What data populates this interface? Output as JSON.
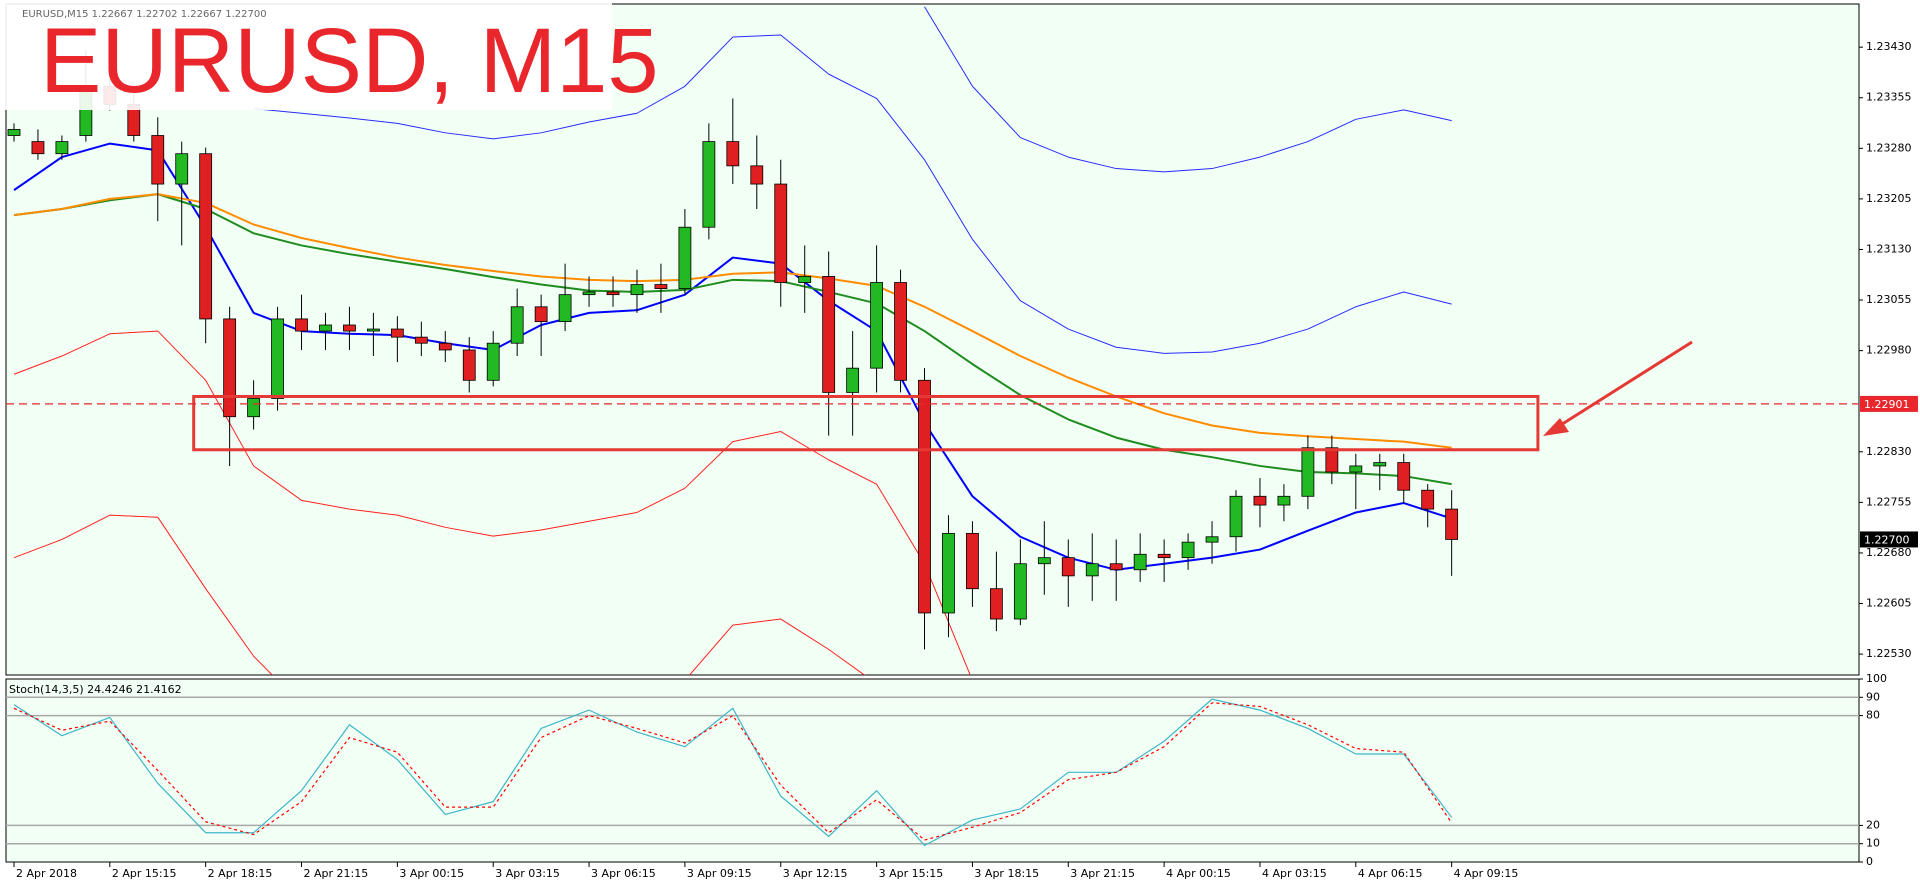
{
  "chart_data": [
    {
      "type": "candlestick",
      "title": "EURUSD, M15",
      "info": "EURUSD,M15  1.22667 1.22702 1.22667 1.22700",
      "up_color": "#22b922",
      "down_color": "#e02020",
      "x": [
        0,
        3,
        6,
        9,
        12,
        15,
        18,
        21,
        24,
        27,
        30,
        33,
        36,
        39,
        42,
        45,
        48,
        51,
        54,
        57,
        60,
        63,
        66,
        69,
        72,
        75,
        78,
        81,
        84,
        87,
        90,
        93,
        96,
        99,
        102,
        105,
        108,
        111,
        114,
        117,
        120,
        123,
        126,
        129,
        132,
        135,
        138,
        141,
        144,
        147,
        150,
        153,
        156,
        159,
        162,
        165,
        168,
        171,
        174,
        177,
        180
      ],
      "open": [
        1.23299,
        1.2329,
        1.23272,
        1.23299,
        1.23372,
        1.23345,
        1.23299,
        1.23227,
        1.23272,
        1.23027,
        1.22882,
        1.22909,
        1.23027,
        1.23009,
        1.23018,
        1.23009,
        1.23012,
        1.23,
        1.22991,
        1.22981,
        1.22936,
        1.22991,
        1.23045,
        1.23023,
        1.23063,
        1.23067,
        1.23063,
        1.23078,
        1.23072,
        1.23163,
        1.2329,
        1.23254,
        1.23227,
        1.23081,
        1.2309,
        1.22918,
        1.22954,
        1.23081,
        1.22936,
        1.22591,
        1.22709,
        1.22627,
        1.22582,
        1.22664,
        1.22673,
        1.22646,
        1.22664,
        1.22655,
        1.22678,
        1.22673,
        1.22696,
        1.22704,
        1.22764,
        1.22751,
        1.22764,
        1.22836,
        1.228,
        1.22809,
        1.22814,
        1.22773,
        1.22745
      ],
      "high": [
        1.23317,
        1.23308,
        1.23299,
        1.23426,
        1.23408,
        1.23363,
        1.23326,
        1.2329,
        1.23281,
        1.23045,
        1.22936,
        1.23045,
        1.23063,
        1.23036,
        1.23045,
        1.23036,
        1.23031,
        1.23023,
        1.23009,
        1.23,
        1.23009,
        1.23072,
        1.23063,
        1.23109,
        1.2309,
        1.2309,
        1.231,
        1.23109,
        1.2319,
        1.23317,
        1.23354,
        1.23299,
        1.23263,
        1.23136,
        1.23127,
        1.23009,
        1.23136,
        1.231,
        1.22954,
        1.22736,
        1.22727,
        1.22682,
        1.227,
        1.22727,
        1.227,
        1.22709,
        1.227,
        1.22709,
        1.227,
        1.22709,
        1.22727,
        1.22773,
        1.22791,
        1.22782,
        1.22854,
        1.22854,
        1.22827,
        1.22827,
        1.22827,
        1.22782,
        1.22773
      ],
      "low": [
        1.2329,
        1.23263,
        1.23263,
        1.2329,
        1.23336,
        1.2329,
        1.23172,
        1.23136,
        1.22991,
        1.22809,
        1.22863,
        1.22891,
        1.22981,
        1.22981,
        1.22981,
        1.22972,
        1.22963,
        1.22972,
        1.22963,
        1.22918,
        1.22927,
        1.22972,
        1.22972,
        1.23009,
        1.23045,
        1.23045,
        1.23036,
        1.23036,
        1.23063,
        1.23145,
        1.23227,
        1.2319,
        1.23045,
        1.23036,
        1.22854,
        1.22854,
        1.22918,
        1.22918,
        1.22537,
        1.22555,
        1.226,
        1.22564,
        1.22573,
        1.22618,
        1.226,
        1.22609,
        1.22609,
        1.22637,
        1.22637,
        1.22655,
        1.22664,
        1.22682,
        1.22718,
        1.22727,
        1.22745,
        1.22782,
        1.22745,
        1.22773,
        1.22754,
        1.22718,
        1.22646
      ],
      "close": [
        1.23308,
        1.23272,
        1.2329,
        1.23372,
        1.23345,
        1.23299,
        1.23227,
        1.23272,
        1.23027,
        1.22882,
        1.22909,
        1.23027,
        1.23009,
        1.23018,
        1.23009,
        1.23012,
        1.23,
        1.22991,
        1.22981,
        1.22936,
        1.22991,
        1.23045,
        1.23023,
        1.23063,
        1.23067,
        1.23063,
        1.23078,
        1.23072,
        1.23163,
        1.2329,
        1.23254,
        1.23227,
        1.23081,
        1.2309,
        1.22918,
        1.22954,
        1.23081,
        1.22936,
        1.22591,
        1.22709,
        1.22627,
        1.22582,
        1.22664,
        1.22673,
        1.22646,
        1.22664,
        1.22655,
        1.22678,
        1.22673,
        1.22696,
        1.22704,
        1.22764,
        1.22751,
        1.22764,
        1.22836,
        1.228,
        1.22809,
        1.22814,
        1.22773,
        1.22745,
        1.227
      ],
      "line_x": [
        0,
        6,
        12,
        18,
        24,
        30,
        36,
        42,
        48,
        54,
        60,
        66,
        72,
        78,
        84,
        90,
        96,
        102,
        108,
        114,
        120,
        126,
        132,
        138,
        144,
        150,
        156,
        162,
        168,
        174,
        180
      ],
      "lines": [
        {
          "color": "#0000ff",
          "width": 2,
          "values": [
            1.23218,
            1.23267,
            1.23287,
            1.23277,
            1.23163,
            1.23036,
            1.23009,
            1.23005,
            1.23003,
            1.22991,
            1.22981,
            1.23018,
            1.23036,
            1.2304,
            1.23063,
            1.23118,
            1.23109,
            1.23054,
            1.23009,
            1.22873,
            1.22764,
            1.22704,
            1.22673,
            1.22655,
            1.22664,
            1.22673,
            1.22685,
            1.22713,
            1.2274,
            1.22754,
            1.22731
          ]
        },
        {
          "color": "#1e8c1e",
          "width": 2,
          "values": [
            1.23181,
            1.2319,
            1.23203,
            1.23212,
            1.2319,
            1.23154,
            1.23136,
            1.23123,
            1.23112,
            1.23101,
            1.23089,
            1.23078,
            1.23069,
            1.23067,
            1.2307,
            1.23085,
            1.23083,
            1.23067,
            1.2305,
            1.23009,
            1.2296,
            1.22914,
            1.22878,
            1.22851,
            1.22833,
            1.22822,
            1.22809,
            1.228,
            1.22798,
            1.22794,
            1.22782
          ]
        },
        {
          "color": "#ff8c00",
          "width": 2,
          "values": [
            1.23181,
            1.2319,
            1.23205,
            1.23212,
            1.23199,
            1.23167,
            1.23147,
            1.23132,
            1.23118,
            1.23107,
            1.23098,
            1.2309,
            1.23085,
            1.23083,
            1.23085,
            1.23094,
            1.23096,
            1.23087,
            1.23076,
            1.23045,
            1.23009,
            1.22972,
            1.2294,
            1.22912,
            1.22887,
            1.22869,
            1.22858,
            1.22853,
            1.22849,
            1.22845,
            1.22836
          ]
        },
        {
          "color": "#2a2aff",
          "width": 1,
          "values": [
            null,
            null,
            null,
            null,
            null,
            1.23339,
            1.23332,
            1.23325,
            1.23317,
            1.23303,
            1.23294,
            1.23303,
            1.23319,
            1.23332,
            1.23372,
            1.23445,
            1.23448,
            1.2339,
            1.23354,
            1.23263,
            1.23145,
            1.23054,
            1.23012,
            1.22985,
            1.22976,
            1.22978,
            1.22991,
            1.23012,
            1.23045,
            1.23067,
            1.23049
          ]
        },
        {
          "color": "#2a2aff",
          "width": 1,
          "values": [
            null,
            null,
            null,
            null,
            null,
            null,
            null,
            null,
            null,
            null,
            null,
            null,
            null,
            null,
            null,
            null,
            null,
            null,
            null,
            1.2349,
            1.23372,
            1.23296,
            1.23267,
            1.2325,
            1.23245,
            1.2325,
            1.23267,
            1.2329,
            1.23323,
            1.23337,
            1.23321
          ]
        },
        {
          "color": "#ff2020",
          "width": 1,
          "values": [
            1.22945,
            1.22972,
            1.23005,
            1.23009,
            1.22936,
            1.22809,
            1.22758,
            1.22745,
            1.22736,
            1.22718,
            1.22705,
            1.22714,
            1.22727,
            1.2274,
            1.22776,
            1.22845,
            1.2286,
            1.22818,
            1.22782,
            1.22664,
            1.22491,
            null,
            null,
            null,
            null,
            null,
            null,
            null,
            null,
            null,
            null
          ]
        },
        {
          "color": "#ff2020",
          "width": 1,
          "values": [
            1.22673,
            1.227,
            1.22736,
            1.22733,
            1.22627,
            1.22527,
            1.22455,
            null,
            null,
            null,
            null,
            null,
            null,
            null,
            1.22491,
            1.22573,
            1.22582,
            1.22537,
            1.22486,
            null,
            null,
            null,
            null,
            null,
            null,
            null,
            null,
            null,
            null,
            null,
            null
          ]
        }
      ],
      "price_lines": [
        {
          "value": 1.22901,
          "label": "1.22901",
          "color": "#e8262b",
          "show_line": true
        },
        {
          "value": 1.227,
          "label": "1.22700",
          "color": "#000000",
          "show_line": false
        }
      ],
      "zone": {
        "x": [
          22.5,
          190.8
        ],
        "y": [
          1.22833,
          1.22912
        ],
        "color": "#e53935"
      },
      "xlim": [
        -1,
        231
      ],
      "xticks": [
        {
          "value": 0,
          "label": "2 Apr 2018"
        },
        {
          "value": 12,
          "label": "2 Apr 15:15"
        },
        {
          "value": 24,
          "label": "2 Apr 18:15"
        },
        {
          "value": 36,
          "label": "2 Apr 21:15"
        },
        {
          "value": 48,
          "label": "3 Apr 00:15"
        },
        {
          "value": 60,
          "label": "3 Apr 03:15"
        },
        {
          "value": 72,
          "label": "3 Apr 06:15"
        },
        {
          "value": 84,
          "label": "3 Apr 09:15"
        },
        {
          "value": 96,
          "label": "3 Apr 12:15"
        },
        {
          "value": 108,
          "label": "3 Apr 15:15"
        },
        {
          "value": 120,
          "label": "3 Apr 18:15"
        },
        {
          "value": 132,
          "label": "3 Apr 21:15"
        },
        {
          "value": 144,
          "label": "4 Apr 00:15"
        },
        {
          "value": 156,
          "label": "4 Apr 03:15"
        },
        {
          "value": 168,
          "label": "4 Apr 06:15"
        },
        {
          "value": 180,
          "label": "4 Apr 09:15"
        }
      ],
      "ylim": [
        1.22499,
        1.23494
      ],
      "yticks": [
        {
          "value": 1.2253,
          "label": "1.22530"
        },
        1.22605,
        {
          "value": 1.2268,
          "label": "1.22680"
        },
        1.22755,
        {
          "value": 1.2283,
          "label": "1.22830"
        },
        {
          "value": 1.2298,
          "label": "1.22980"
        },
        1.23055,
        {
          "value": 1.2313,
          "label": "1.23130"
        },
        1.23205,
        {
          "value": 1.2328,
          "label": "1.23280"
        },
        1.23355,
        {
          "value": 1.2343,
          "label": "1.23430"
        }
      ]
    },
    {
      "type": "line",
      "title": "Stoch(14,3,5) 24.4246 21.4162",
      "x": [
        0,
        6,
        12,
        18,
        24,
        30,
        36,
        42,
        48,
        54,
        60,
        66,
        72,
        78,
        84,
        90,
        96,
        102,
        108,
        114,
        120,
        126,
        132,
        138,
        144,
        150,
        156,
        162,
        168,
        174,
        180
      ],
      "series": [
        {
          "color": "#3fb6c9",
          "dashed": false,
          "values": [
            86,
            69,
            79,
            43,
            16,
            16,
            39,
            75,
            56,
            26,
            33,
            73,
            83,
            71,
            63,
            84,
            36,
            14,
            39,
            9,
            23,
            29,
            49,
            49,
            66,
            89,
            83,
            73,
            59,
            59,
            24.4246
          ]
        },
        {
          "color": "#ff0000",
          "dashed": true,
          "values": [
            84,
            72,
            77,
            50,
            22,
            15,
            33,
            68,
            60,
            30,
            30,
            68,
            80,
            73,
            65,
            80,
            42,
            16,
            34,
            12,
            19,
            27,
            45,
            49,
            63,
            87,
            85,
            75,
            62,
            60,
            21.4162
          ]
        }
      ],
      "xlim": [
        -1,
        231
      ],
      "ylim": [
        0,
        100
      ],
      "yticks": [
        0,
        10,
        20,
        80,
        90,
        100
      ],
      "levels": [
        10,
        20,
        80,
        90
      ]
    }
  ]
}
